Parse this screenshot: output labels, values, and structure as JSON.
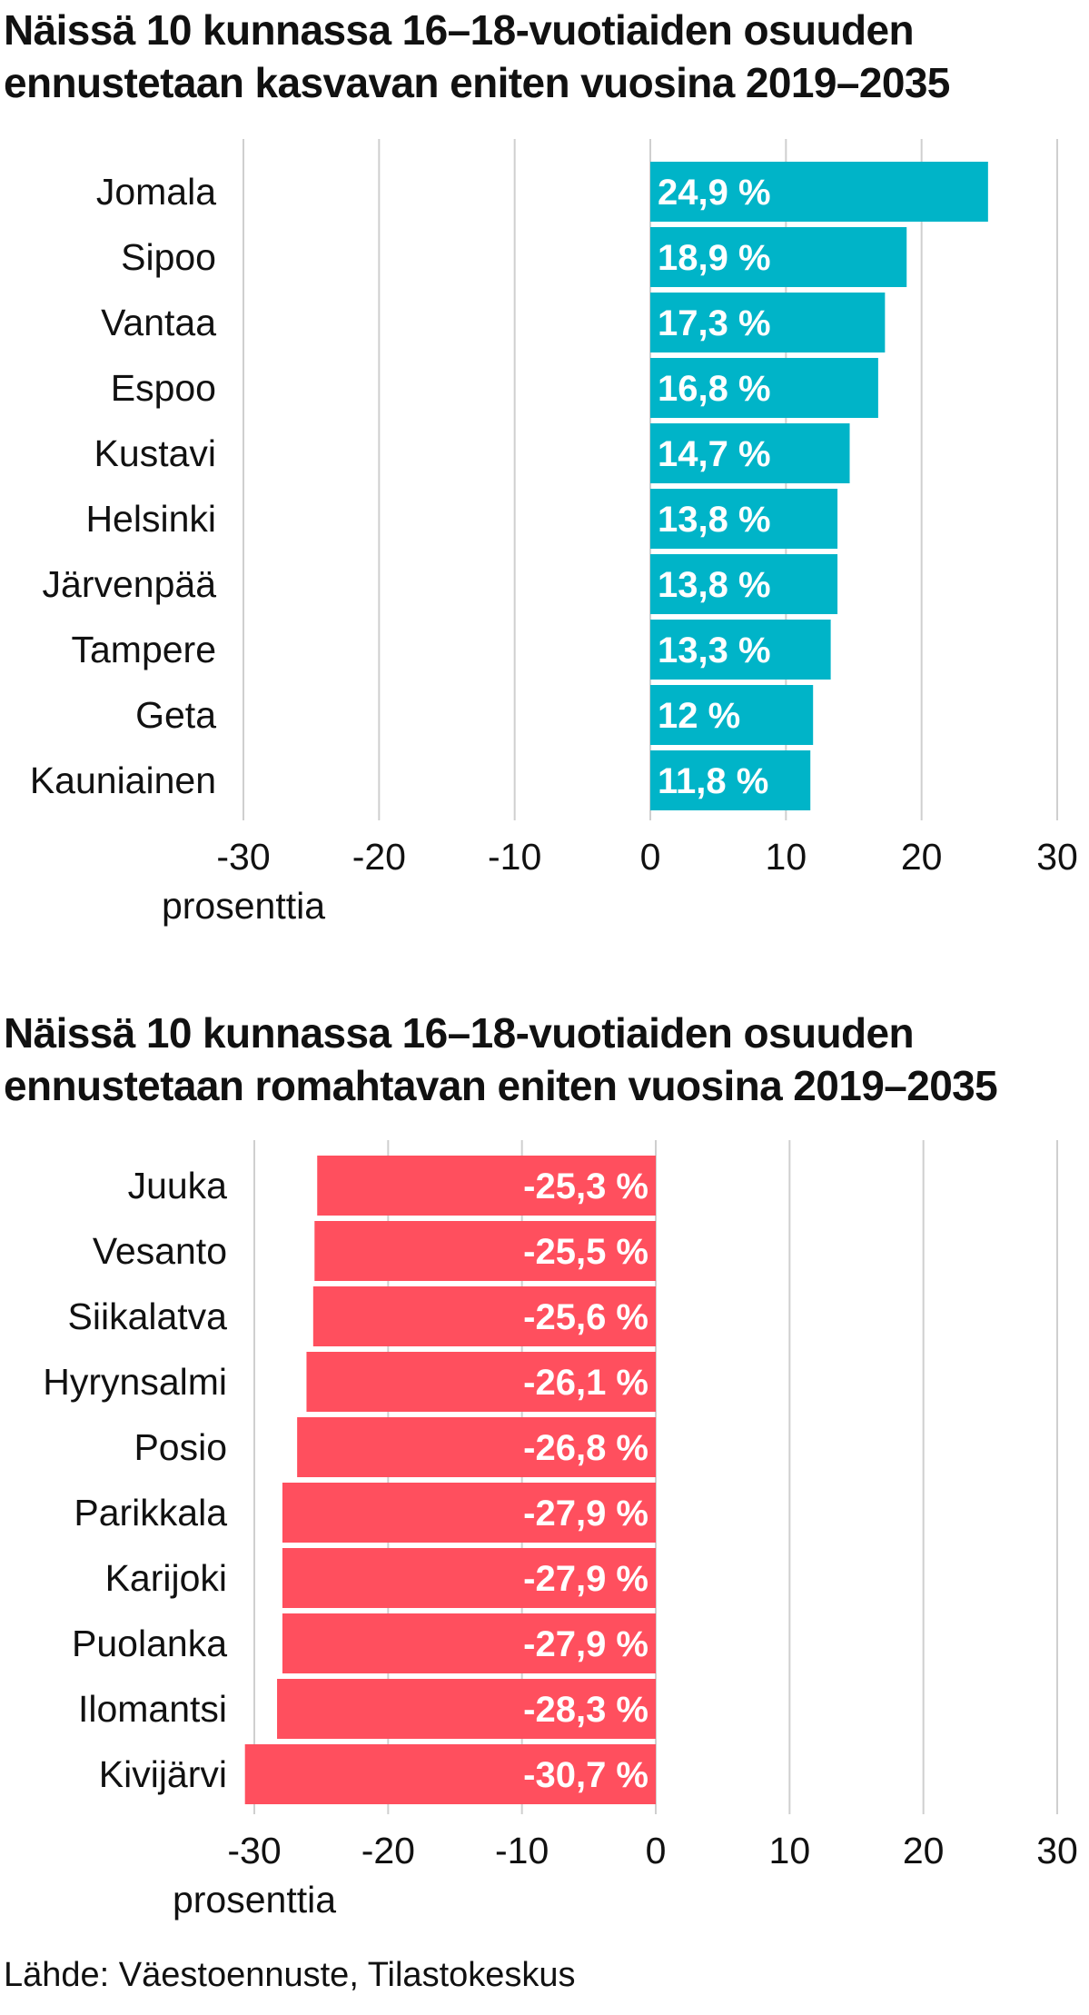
{
  "chart_data": [
    {
      "type": "bar",
      "orientation": "horizontal",
      "title": "Näissä 10 kunnassa 16–18-vuotiaiden osuuden ennustetaan kasvavan eniten vuosina 2019–2035",
      "title_lines": [
        "Näissä 10 kunnassa 16–18-vuotiaiden osuuden",
        "ennustetaan kasvavan eniten vuosina 2019–2035"
      ],
      "categories": [
        "Jomala",
        "Sipoo",
        "Vantaa",
        "Espoo",
        "Kustavi",
        "Helsinki",
        "Järvenpää",
        "Tampere",
        "Geta",
        "Kauniainen"
      ],
      "values": [
        24.9,
        18.9,
        17.3,
        16.8,
        14.7,
        13.8,
        13.8,
        13.3,
        12,
        11.8
      ],
      "value_labels": [
        "24,9 %",
        "18,9 %",
        "17,3 %",
        "16,8 %",
        "14,7 %",
        "13,8 %",
        "13,8 %",
        "13,3 %",
        "12 %",
        "11,8 %"
      ],
      "xlim": [
        -30,
        30
      ],
      "xticks": [
        -30,
        -20,
        -10,
        0,
        10,
        20,
        30
      ],
      "xtick_labels": [
        "-30",
        "-20",
        "-10",
        "0",
        "10",
        "20",
        "30"
      ],
      "xlabel": "prosenttia",
      "grid": true,
      "color": "#00b4c8"
    },
    {
      "type": "bar",
      "orientation": "horizontal",
      "title": "Näissä 10 kunnassa 16–18-vuotiaiden osuuden ennustetaan romahtavan eniten vuosina 2019–2035",
      "title_lines": [
        "Näissä 10 kunnassa 16–18-vuotiaiden osuuden",
        "ennustetaan romahtavan eniten vuosina 2019–2035"
      ],
      "categories": [
        "Juuka",
        "Vesanto",
        "Siikalatva",
        "Hyrynsalmi",
        "Posio",
        "Parikkala",
        "Karijoki",
        "Puolanka",
        "Ilomantsi",
        "Kivijärvi"
      ],
      "values": [
        -25.3,
        -25.5,
        -25.6,
        -26.1,
        -26.8,
        -27.9,
        -27.9,
        -27.9,
        -28.3,
        -30.7
      ],
      "value_labels": [
        "-25,3 %",
        "-25,5 %",
        "-25,6 %",
        "-26,1 %",
        "-26,8 %",
        "-27,9 %",
        "-27,9 %",
        "-27,9 %",
        "-28,3 %",
        "-30,7 %"
      ],
      "xlim": [
        -30,
        30
      ],
      "xticks": [
        -30,
        -20,
        -10,
        0,
        10,
        20,
        30
      ],
      "xtick_labels": [
        "-30",
        "-20",
        "-10",
        "0",
        "10",
        "20",
        "30"
      ],
      "xlabel": "prosenttia",
      "grid": true,
      "color": "#ff4f5e"
    }
  ],
  "source": "Lähde: Väestoennuste, Tilastokeskus"
}
